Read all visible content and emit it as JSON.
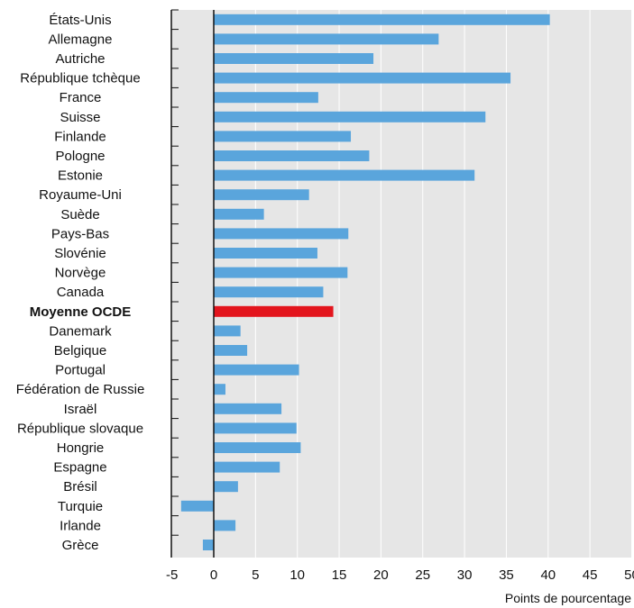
{
  "chart_data": {
    "type": "bar",
    "orientation": "horizontal",
    "categories": [
      "États-Unis",
      "Allemagne",
      "Autriche",
      "République tchèque",
      "France",
      "Suisse",
      "Finlande",
      "Pologne",
      "Estonie",
      "Royaume-Uni",
      "Suède",
      "Pays-Bas",
      "Slovénie",
      "Norvège",
      "Canada",
      "Moyenne OCDE",
      "Danemark",
      "Belgique",
      "Portugal",
      "Fédération de Russie",
      "Israël",
      "République slovaque",
      "Hongrie",
      "Espagne",
      "Brésil",
      "Turquie",
      "Irlande",
      "Grèce"
    ],
    "values": [
      40.2,
      26.9,
      19.1,
      35.5,
      12.5,
      32.5,
      16.4,
      18.6,
      31.2,
      11.4,
      6.0,
      16.1,
      12.4,
      16.0,
      13.1,
      14.3,
      3.2,
      4.0,
      10.2,
      1.4,
      8.1,
      9.9,
      10.4,
      7.9,
      2.9,
      -3.9,
      2.6,
      -1.3
    ],
    "highlight": "Moyenne OCDE",
    "xlim": [
      -5,
      50
    ],
    "xticks": [
      -5,
      0,
      5,
      10,
      15,
      20,
      25,
      30,
      35,
      40,
      45,
      50
    ],
    "xlabel": "Points de pourcentage",
    "grid": true,
    "colors": {
      "bar": "#5aa5dc",
      "highlight": "#e3151d",
      "plot_bg": "#e6e6e6",
      "grid": "#ffffff",
      "axis": "#111111"
    }
  }
}
